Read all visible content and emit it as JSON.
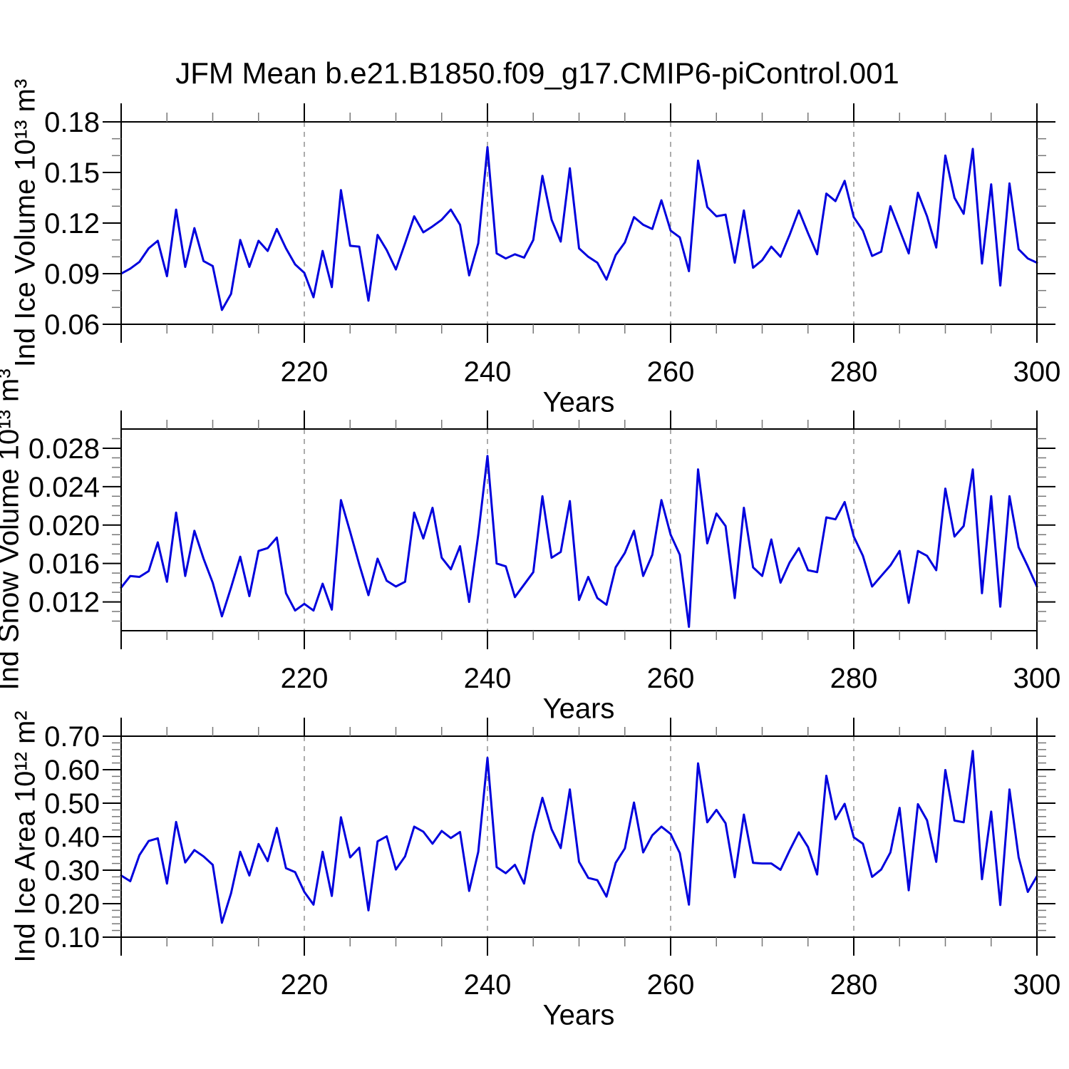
{
  "title": "JFM Mean b.e21.B1850.f09_g17.CMIP6-piControl.001",
  "colors": {
    "line": "#0000dd",
    "grid": "#909090",
    "axis": "#000000",
    "minor_tick": "#777777",
    "background": "#ffffff"
  },
  "chart_data": [
    {
      "type": "line",
      "name": "ice-volume",
      "title": "JFM Mean b.e21.B1850.f09_g17.CMIP6-piControl.001",
      "ylabel": "Ind Ice Volume 10¹³ m³",
      "xlabel": "Years",
      "xlim": [
        200,
        300
      ],
      "xticks": [
        220,
        240,
        260,
        280,
        300
      ],
      "x_major_step": 20,
      "x_minor_step": 5,
      "grid_x": [
        220,
        240,
        260,
        280
      ],
      "ylim": [
        0.06,
        0.18
      ],
      "yticks": [
        0.06,
        0.09,
        0.12,
        0.15,
        0.18
      ],
      "ytick_decimals": 2,
      "y_minor_step": 0.01,
      "x_start": 200,
      "x_step": 1,
      "values": [
        0.09,
        0.093,
        0.097,
        0.105,
        0.1095,
        0.0885,
        0.128,
        0.094,
        0.117,
        0.0975,
        0.0945,
        0.0685,
        0.078,
        0.11,
        0.094,
        0.1095,
        0.1035,
        0.1165,
        0.105,
        0.0955,
        0.0905,
        0.076,
        0.1035,
        0.082,
        0.1395,
        0.1065,
        0.106,
        0.074,
        0.113,
        0.104,
        0.0925,
        0.108,
        0.124,
        0.1145,
        0.118,
        0.122,
        0.128,
        0.119,
        0.089,
        0.108,
        0.165,
        0.102,
        0.099,
        0.1015,
        0.0995,
        0.11,
        0.148,
        0.122,
        0.109,
        0.1525,
        0.105,
        0.1,
        0.0965,
        0.0865,
        0.101,
        0.1085,
        0.1235,
        0.119,
        0.1165,
        0.1335,
        0.1155,
        0.1115,
        0.0915,
        0.157,
        0.1295,
        0.124,
        0.125,
        0.0965,
        0.1275,
        0.0935,
        0.098,
        0.106,
        0.1,
        0.113,
        0.1275,
        0.114,
        0.1015,
        0.1375,
        0.133,
        0.145,
        0.1235,
        0.1155,
        0.1005,
        0.103,
        0.13,
        0.116,
        0.102,
        0.138,
        0.124,
        0.1055,
        0.16,
        0.135,
        0.1255,
        0.164,
        0.096,
        0.143,
        0.083,
        0.1435,
        0.1045,
        0.099,
        0.0965
      ]
    },
    {
      "type": "line",
      "name": "snow-volume",
      "title": "JFM Mean b.e21.B1850.f09_g17.CMIP6-piControl.001",
      "ylabel": "Ind Snow Volume 10¹³ m³",
      "xlabel": "Years",
      "xlim": [
        200,
        300
      ],
      "xticks": [
        220,
        240,
        260,
        280,
        300
      ],
      "x_major_step": 20,
      "x_minor_step": 5,
      "grid_x": [
        220,
        240,
        260,
        280
      ],
      "ylim": [
        0.009,
        0.03
      ],
      "yticks": [
        0.012,
        0.016,
        0.02,
        0.024,
        0.028
      ],
      "ytick_decimals": 3,
      "y_minor_step": 0.001,
      "x_start": 200,
      "x_step": 1,
      "values": [
        0.0135,
        0.0147,
        0.0146,
        0.0152,
        0.0182,
        0.0141,
        0.0213,
        0.0147,
        0.0194,
        0.0165,
        0.014,
        0.0105,
        0.0135,
        0.0167,
        0.0126,
        0.0173,
        0.0176,
        0.0187,
        0.0129,
        0.0111,
        0.0118,
        0.0111,
        0.0139,
        0.0112,
        0.0226,
        0.0193,
        0.0159,
        0.0127,
        0.0165,
        0.0142,
        0.0136,
        0.0141,
        0.0213,
        0.0186,
        0.0218,
        0.0166,
        0.0154,
        0.0178,
        0.012,
        0.019,
        0.0272,
        0.016,
        0.0157,
        0.0125,
        0.0138,
        0.0151,
        0.023,
        0.0166,
        0.0172,
        0.0225,
        0.0122,
        0.0146,
        0.0124,
        0.0117,
        0.0156,
        0.0171,
        0.0194,
        0.0147,
        0.0169,
        0.0226,
        0.019,
        0.0169,
        0.0094,
        0.0258,
        0.0181,
        0.0212,
        0.0199,
        0.0124,
        0.0218,
        0.0156,
        0.0147,
        0.0185,
        0.014,
        0.0161,
        0.0176,
        0.0153,
        0.0151,
        0.0208,
        0.0206,
        0.0224,
        0.0188,
        0.0168,
        0.0136,
        0.0147,
        0.0158,
        0.0173,
        0.0119,
        0.0173,
        0.0168,
        0.0153,
        0.0238,
        0.0188,
        0.0199,
        0.0258,
        0.0129,
        0.023,
        0.0115,
        0.023,
        0.0177,
        0.0157,
        0.0136
      ]
    },
    {
      "type": "line",
      "name": "ice-area",
      "title": "JFM Mean b.e21.B1850.f09_g17.CMIP6-piControl.001",
      "ylabel": "Ind Ice Area 10¹² m²",
      "xlabel": "Years",
      "xlim": [
        200,
        300
      ],
      "xticks": [
        220,
        240,
        260,
        280,
        300
      ],
      "x_major_step": 20,
      "x_minor_step": 5,
      "grid_x": [
        220,
        240,
        260,
        280
      ],
      "ylim": [
        0.1,
        0.7
      ],
      "yticks": [
        0.1,
        0.2,
        0.3,
        0.4,
        0.5,
        0.6,
        0.7
      ],
      "ytick_decimals": 2,
      "y_minor_step": 0.02,
      "x_start": 200,
      "x_step": 1,
      "values": [
        0.284,
        0.267,
        0.345,
        0.387,
        0.395,
        0.26,
        0.444,
        0.323,
        0.36,
        0.341,
        0.316,
        0.143,
        0.231,
        0.355,
        0.284,
        0.378,
        0.327,
        0.426,
        0.306,
        0.294,
        0.235,
        0.197,
        0.355,
        0.223,
        0.458,
        0.338,
        0.367,
        0.18,
        0.386,
        0.401,
        0.302,
        0.341,
        0.43,
        0.415,
        0.379,
        0.417,
        0.396,
        0.414,
        0.238,
        0.355,
        0.635,
        0.309,
        0.291,
        0.316,
        0.26,
        0.408,
        0.516,
        0.422,
        0.366,
        0.541,
        0.325,
        0.277,
        0.27,
        0.221,
        0.322,
        0.365,
        0.502,
        0.353,
        0.404,
        0.43,
        0.408,
        0.351,
        0.197,
        0.619,
        0.443,
        0.48,
        0.44,
        0.279,
        0.466,
        0.322,
        0.32,
        0.32,
        0.301,
        0.359,
        0.413,
        0.369,
        0.287,
        0.582,
        0.452,
        0.498,
        0.398,
        0.379,
        0.28,
        0.302,
        0.353,
        0.486,
        0.24,
        0.497,
        0.449,
        0.325,
        0.599,
        0.448,
        0.443,
        0.656,
        0.273,
        0.475,
        0.196,
        0.541,
        0.339,
        0.235,
        0.282
      ]
    }
  ]
}
